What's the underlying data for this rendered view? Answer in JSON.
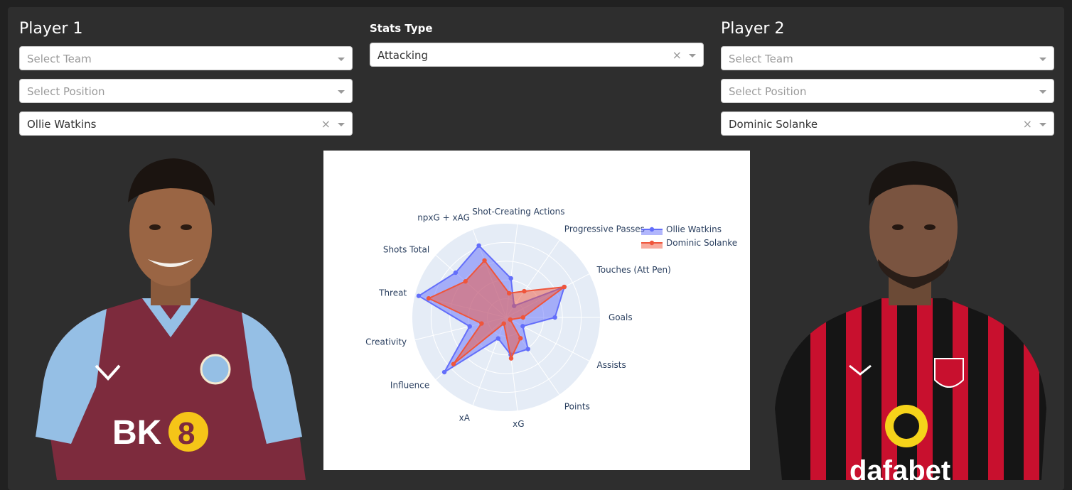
{
  "player1": {
    "heading": "Player 1",
    "team": {
      "placeholder": "Select Team",
      "value": ""
    },
    "position": {
      "placeholder": "Select Position",
      "value": ""
    },
    "player": {
      "value": "Ollie Watkins",
      "clear": "×"
    }
  },
  "stats": {
    "heading": "Stats Type",
    "select": {
      "value": "Attacking",
      "clear": "×"
    }
  },
  "player2": {
    "heading": "Player 2",
    "team": {
      "placeholder": "Select Team",
      "value": ""
    },
    "position": {
      "placeholder": "Select Position",
      "value": ""
    },
    "player": {
      "value": "Dominic Solanke",
      "clear": "×"
    }
  },
  "chart_data": {
    "type": "radar",
    "title": "",
    "axes": [
      "Goals",
      "Touches (Att Pen)",
      "Progressive Passes",
      "Shot-Creating Actions",
      "npxG + xAG",
      "Shots Total",
      "Threat",
      "Creativity",
      "Influence",
      "xA",
      "xG",
      "Points",
      "Assists"
    ],
    "range": [
      0,
      1
    ],
    "grid": true,
    "legend_position": "top-right",
    "series": [
      {
        "name": "Ollie Watkins",
        "color": "#636efa",
        "values": [
          0.52,
          0.7,
          0.15,
          0.42,
          0.82,
          0.72,
          0.96,
          0.4,
          0.88,
          0.24,
          0.4,
          0.41,
          0.2
        ]
      },
      {
        "name": "Dominic Solanke",
        "color": "#ef553b",
        "values": [
          0.18,
          0.7,
          0.34,
          0.26,
          0.65,
          0.58,
          0.85,
          0.27,
          0.75,
          0.07,
          0.44,
          0.27,
          0.05
        ]
      }
    ]
  }
}
